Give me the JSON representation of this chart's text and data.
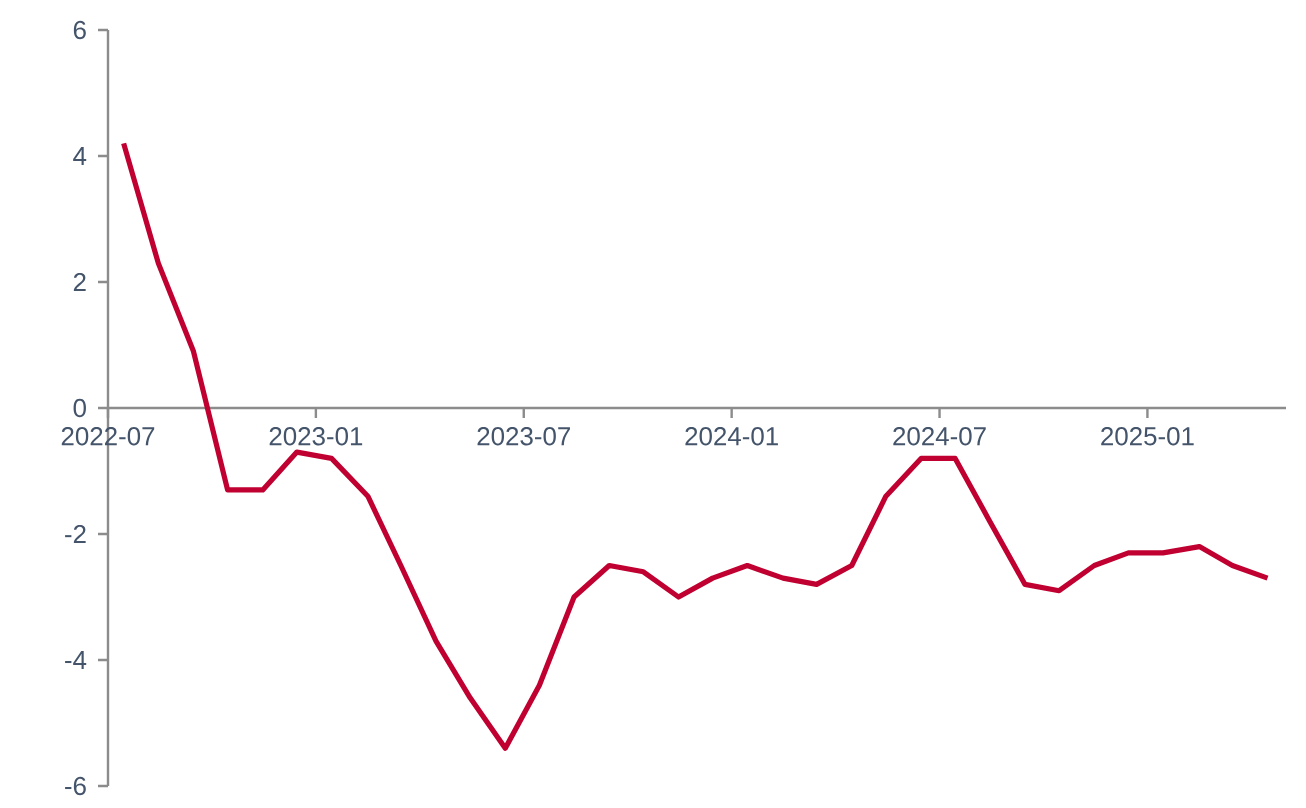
{
  "chart_data": {
    "type": "line",
    "x": [
      "2022-07-15",
      "2022-08-15",
      "2022-09-15",
      "2022-10-15",
      "2022-11-15",
      "2022-12-15",
      "2023-01-15",
      "2023-02-15",
      "2023-03-15",
      "2023-04-15",
      "2023-05-15",
      "2023-06-15",
      "2023-07-15",
      "2023-08-15",
      "2023-09-15",
      "2023-10-15",
      "2023-11-15",
      "2023-12-15",
      "2024-01-15",
      "2024-02-15",
      "2024-03-15",
      "2024-04-15",
      "2024-05-15",
      "2024-06-15",
      "2024-07-15",
      "2024-08-15",
      "2024-09-15",
      "2024-10-15",
      "2024-11-15",
      "2024-12-15",
      "2025-01-15",
      "2025-02-15",
      "2025-03-15",
      "2025-04-15"
    ],
    "series": [
      {
        "color": "#c00030",
        "values": [
          4.2,
          2.3,
          0.9,
          -1.3,
          -1.3,
          -0.7,
          -0.8,
          -1.4,
          -2.5,
          -3.7,
          -4.6,
          -5.4,
          -4.4,
          -3.0,
          -2.5,
          -2.6,
          -3.0,
          -2.7,
          -2.5,
          -2.7,
          -2.8,
          -2.5,
          -1.4,
          -0.8,
          -0.8,
          -1.8,
          -2.8,
          -2.9,
          -2.5,
          -2.3,
          -2.3,
          -2.2,
          -2.5,
          -2.7
        ]
      }
    ],
    "xlim": [
      "2022-07-01",
      "2025-05-01"
    ],
    "xticks": [
      {
        "value": "2022-07-01",
        "label": "2022-07"
      },
      {
        "value": "2023-01-01",
        "label": "2023-01"
      },
      {
        "value": "2023-07-01",
        "label": "2023-07"
      },
      {
        "value": "2024-01-01",
        "label": "2024-01"
      },
      {
        "value": "2024-07-01",
        "label": "2024-07"
      },
      {
        "value": "2025-01-01",
        "label": "2025-01"
      }
    ],
    "ylim": [
      -6,
      6
    ],
    "yticks": [
      -6,
      -4,
      -2,
      0,
      2,
      4,
      6
    ],
    "grid": false,
    "marker": "none",
    "line_style": "solid"
  }
}
